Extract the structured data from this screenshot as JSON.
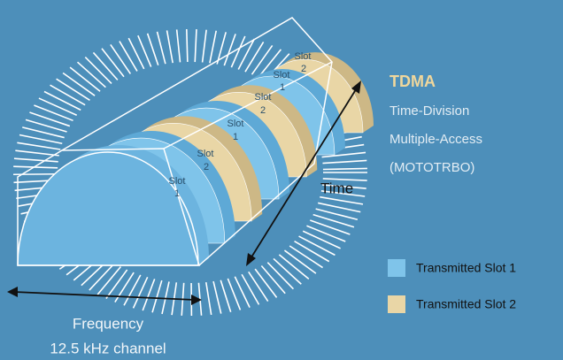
{
  "title": "TDMA",
  "subtitle_lines": [
    "Time-Division",
    "Multiple-Access",
    "(MOTOTRBO)"
  ],
  "axes": {
    "time": "Time",
    "frequency": "Frequency",
    "channel": "12.5 kHz channel"
  },
  "slots": [
    [
      "Slot",
      "1"
    ],
    [
      "Slot",
      "2"
    ],
    [
      "Slot",
      "1"
    ],
    [
      "Slot",
      "2"
    ],
    [
      "Slot",
      "1"
    ],
    [
      "Slot",
      "2"
    ]
  ],
  "legend": [
    "Transmitted Slot 1",
    "Transmitted Slot 2"
  ]
}
